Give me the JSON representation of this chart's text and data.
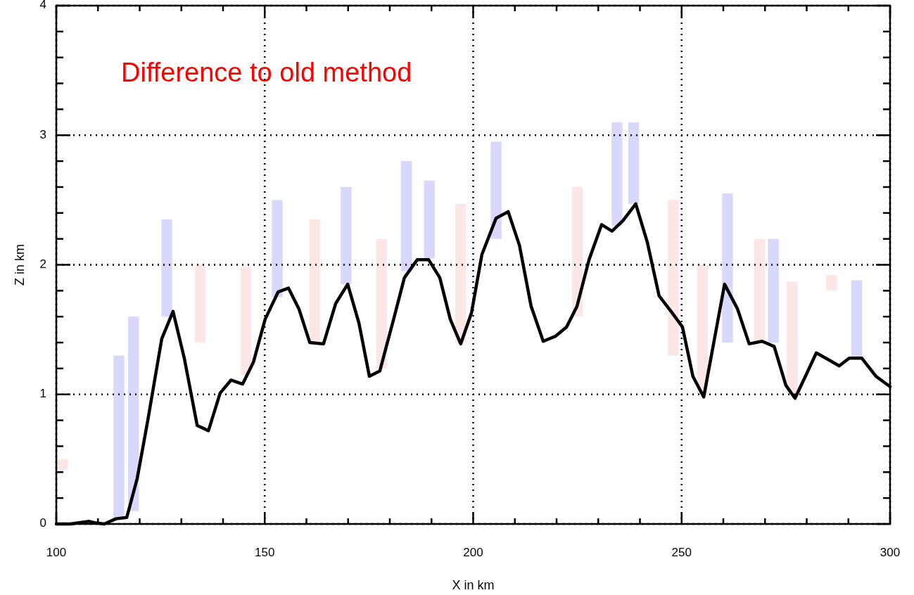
{
  "chart_data": {
    "type": "line",
    "xlabel": "X in km",
    "ylabel": "Z in km",
    "annotations": [
      "Difference to old method"
    ],
    "xlim": [
      100,
      300
    ],
    "ylim": [
      0,
      4
    ],
    "xticks": [
      100,
      {
        "value": 110,
        "label": null
      },
      {
        "value": 120,
        "label": null
      },
      {
        "value": 130,
        "label": null
      },
      {
        "value": 140,
        "label": null
      },
      150,
      {
        "value": 160,
        "label": null
      },
      {
        "value": 170,
        "label": null
      },
      {
        "value": 180,
        "label": null
      },
      {
        "value": 190,
        "label": null
      },
      200,
      {
        "value": 210,
        "label": null
      },
      {
        "value": 220,
        "label": null
      },
      {
        "value": 230,
        "label": null
      },
      {
        "value": 240,
        "label": null
      },
      250,
      {
        "value": 260,
        "label": null
      },
      {
        "value": 270,
        "label": null
      },
      {
        "value": 280,
        "label": null
      },
      {
        "value": 290,
        "label": null
      },
      300
    ],
    "yticks": [
      0,
      {
        "value": 0.2,
        "label": null
      },
      {
        "value": 0.4,
        "label": null
      },
      {
        "value": 0.6,
        "label": null
      },
      {
        "value": 0.8,
        "label": null
      },
      1,
      {
        "value": 1.2,
        "label": null
      },
      {
        "value": 1.4,
        "label": null
      },
      {
        "value": 1.6,
        "label": null
      },
      {
        "value": 1.8,
        "label": null
      },
      2,
      {
        "value": 2.2,
        "label": null
      },
      {
        "value": 2.4,
        "label": null
      },
      {
        "value": 2.6,
        "label": null
      },
      {
        "value": 2.8,
        "label": null
      },
      3,
      {
        "value": 3.2,
        "label": null
      },
      {
        "value": 3.4,
        "label": null
      },
      {
        "value": 3.6,
        "label": null
      },
      {
        "value": 3.8,
        "label": null
      },
      4
    ],
    "grid": true,
    "line_style": "dotted",
    "series": [
      {
        "type": "bar",
        "color": "#d8d8fc",
        "x": [
          115,
          118.5,
          126.5,
          153,
          169.5,
          184,
          189.5,
          205.5,
          234.5,
          238.5,
          261,
          272,
          292
        ],
        "base": [
          0.05,
          0.1,
          1.6,
          1.75,
          1.85,
          1.95,
          2.05,
          2.2,
          2.3,
          2.47,
          1.4,
          1.4,
          1.28
        ],
        "values": [
          1.25,
          1.5,
          0.75,
          0.75,
          0.75,
          0.85,
          0.6,
          0.75,
          0.8,
          0.63,
          1.15,
          0.8,
          0.6
        ]
      },
      {
        "type": "bar",
        "color": "#fde6e6",
        "x": [
          101.5,
          134.5,
          145.5,
          162,
          178,
          197,
          225,
          248,
          255,
          268.7,
          276.5,
          286
        ],
        "base": [
          0.42,
          1.4,
          1.15,
          1.4,
          1.2,
          1.4,
          1.6,
          1.3,
          1.0,
          1.4,
          1.0,
          1.8
        ],
        "values": [
          0.08,
          0.6,
          0.83,
          0.95,
          1.0,
          1.07,
          1.0,
          1.2,
          1.0,
          0.8,
          0.87,
          0.12
        ]
      },
      {
        "color": "#000000",
        "line_style": "solid",
        "x": [
          100,
          103.4,
          107.9,
          109.2,
          111.5,
          114.3,
          116.9,
          119.4,
          121.9,
          125.3,
          128,
          130.7,
          133.8,
          136.5,
          139.3,
          141.9,
          144.7,
          147.3,
          150.1,
          153.2,
          155.7,
          158.2,
          160.8,
          164.1,
          167,
          169.9,
          172.6,
          175.1,
          177.6,
          181,
          183.5,
          186.6,
          189.3,
          192,
          194.5,
          197,
          199.6,
          202.1,
          205.5,
          208.4,
          211.1,
          213.9,
          216.8,
          219.8,
          222.4,
          224.9,
          227.8,
          230.8,
          233.3,
          235.9,
          239,
          241.8,
          244.6,
          247.7,
          250.2,
          252.7,
          255.3,
          260.3,
          263.4,
          266.2,
          269.3,
          272.2,
          275,
          277.2,
          279.7,
          282.3,
          285.1,
          287.8,
          290.2,
          293.2,
          296.6,
          300
        ],
        "values": [
          0,
          0,
          0.02,
          0.01,
          0,
          0.04,
          0.05,
          0.35,
          0.79,
          1.43,
          1.64,
          1.28,
          0.76,
          0.72,
          1.01,
          1.11,
          1.08,
          1.25,
          1.58,
          1.79,
          1.82,
          1.66,
          1.4,
          1.39,
          1.7,
          1.85,
          1.55,
          1.14,
          1.18,
          1.59,
          1.9,
          2.04,
          2.04,
          1.9,
          1.58,
          1.39,
          1.63,
          2.08,
          2.36,
          2.41,
          2.15,
          1.68,
          1.41,
          1.45,
          1.52,
          1.68,
          2.04,
          2.31,
          2.26,
          2.34,
          2.47,
          2.17,
          1.76,
          1.63,
          1.52,
          1.14,
          0.98,
          1.85,
          1.66,
          1.39,
          1.41,
          1.37,
          1.07,
          0.97,
          1.14,
          1.32,
          1.27,
          1.22,
          1.28,
          1.28,
          1.14,
          1.06
        ]
      }
    ]
  }
}
